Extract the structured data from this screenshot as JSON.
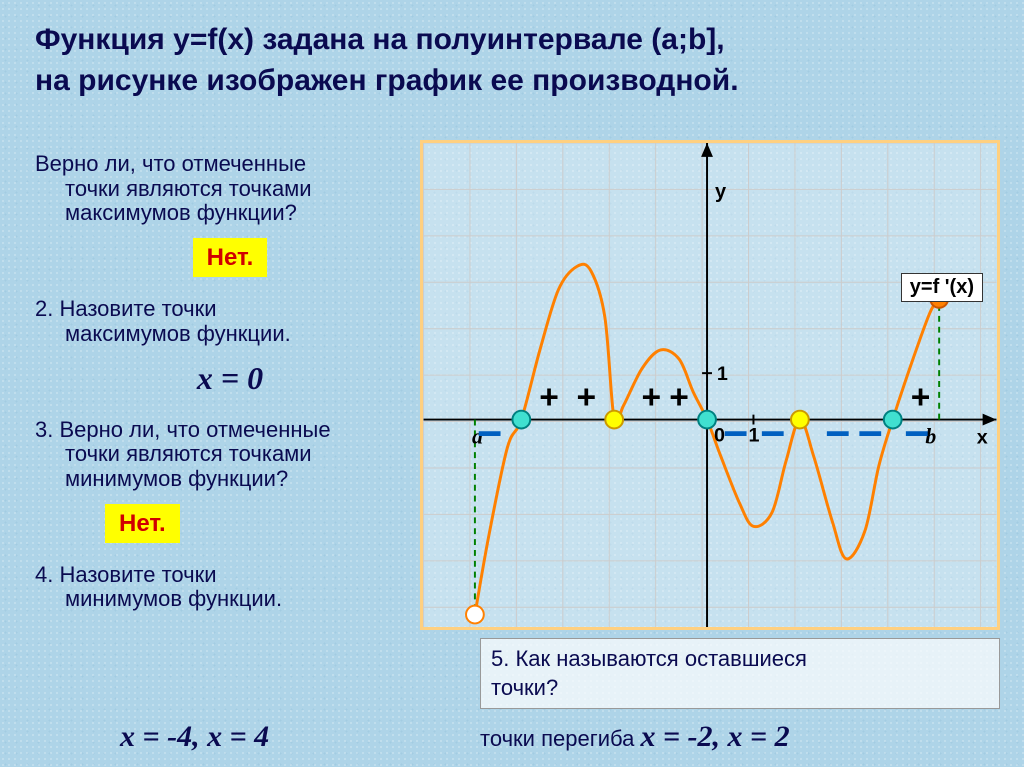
{
  "title_line1": "Функция  y=f(x) задана на полуинтервале (a;b],",
  "title_line2": "на рисунке изображен график ее производной.",
  "questions": {
    "q1_l1": "Верно ли, что  отмеченные",
    "q1_l2": "точки являются точками",
    "q1_l3": "максимумов функции?",
    "a1": "Нет.",
    "q2_l1": "2. Назовите точки",
    "q2_l2": "максимумов функции.",
    "a2": "x = 0",
    "q3_l1": "3. Верно ли, что  отмеченные",
    "q3_l2": "точки являются точками",
    "q3_l3": "минимумов функции?",
    "a3": "Нет.",
    "q4_l1": "4. Назовите точки",
    "q4_l2": "минимумов функции.",
    "a4": "x = -4,  x = 4",
    "q5_l1": "5. Как называются оставшиеся",
    "q5_l2": "    точки?",
    "a5_prefix": "точки перегиба  ",
    "a5": "x = -2,  x = 2"
  },
  "chart": {
    "type": "line",
    "background": "rgba(255,255,255,0.3)",
    "border_color": "#ffd080",
    "grid_color": "#cccccc",
    "axis_color": "#000000",
    "curve_color": "#ff8000",
    "curve_width": 3,
    "dashed_color": "#008000",
    "marker_cyan": {
      "fill": "#40e0d0",
      "stroke": "#008080"
    },
    "marker_yellow": {
      "fill": "#ffff00",
      "stroke": "#cc9900"
    },
    "marker_open": {
      "fill": "#ffffff",
      "stroke": "#ff8000"
    },
    "marker_orange": {
      "fill": "#ff8000",
      "stroke": "#cc5500"
    },
    "marker_radius": 9,
    "cell": 47,
    "origin_col": 6,
    "origin_row": 6,
    "xlim": [
      -6,
      6
    ],
    "ylim": [
      -4,
      6
    ],
    "legend_label": "y=f '(x)",
    "y_label": "y",
    "x_label": "x",
    "tick_one": "1",
    "tick_zero": "0",
    "a_label": "a",
    "b_label": "b",
    "curve_points": [
      [
        -5.0,
        -4.2
      ],
      [
        -4.7,
        -2.5
      ],
      [
        -4.3,
        -0.6
      ],
      [
        -4.0,
        0.0
      ],
      [
        -3.6,
        1.5
      ],
      [
        -3.2,
        2.8
      ],
      [
        -2.8,
        3.3
      ],
      [
        -2.5,
        3.2
      ],
      [
        -2.2,
        2.2
      ],
      [
        -2.0,
        0.0
      ],
      [
        -1.8,
        0.3
      ],
      [
        -1.4,
        1.1
      ],
      [
        -1.0,
        1.5
      ],
      [
        -0.6,
        1.3
      ],
      [
        -0.3,
        0.6
      ],
      [
        0.0,
        0.0
      ],
      [
        0.3,
        -0.8
      ],
      [
        0.7,
        -1.8
      ],
      [
        1.0,
        -2.3
      ],
      [
        1.4,
        -2.0
      ],
      [
        1.7,
        -0.9
      ],
      [
        2.0,
        0.0
      ],
      [
        2.3,
        -0.8
      ],
      [
        2.7,
        -2.2
      ],
      [
        3.0,
        -3.0
      ],
      [
        3.4,
        -2.4
      ],
      [
        3.7,
        -1.0
      ],
      [
        4.0,
        0.0
      ],
      [
        4.4,
        1.2
      ],
      [
        4.8,
        2.3
      ],
      [
        5.0,
        2.6
      ]
    ],
    "markers_cyan_x": [
      -4,
      0,
      4
    ],
    "markers_yellow_x": [
      -2,
      2
    ],
    "marker_open_xy": [
      -5,
      -4.2
    ],
    "marker_orange_xy": [
      5,
      2.6
    ],
    "plus_positions": [
      [
        -3.4,
        0.5
      ],
      [
        -2.6,
        0.5
      ],
      [
        -1.2,
        0.5
      ],
      [
        -0.6,
        0.5
      ],
      [
        4.6,
        0.5
      ]
    ],
    "minus_positions": [
      [
        -4.7,
        -0.4
      ],
      [
        0.6,
        -0.4
      ],
      [
        1.4,
        -0.4
      ],
      [
        2.8,
        -0.4
      ],
      [
        3.5,
        -0.4
      ],
      [
        4.5,
        -0.4
      ]
    ]
  }
}
